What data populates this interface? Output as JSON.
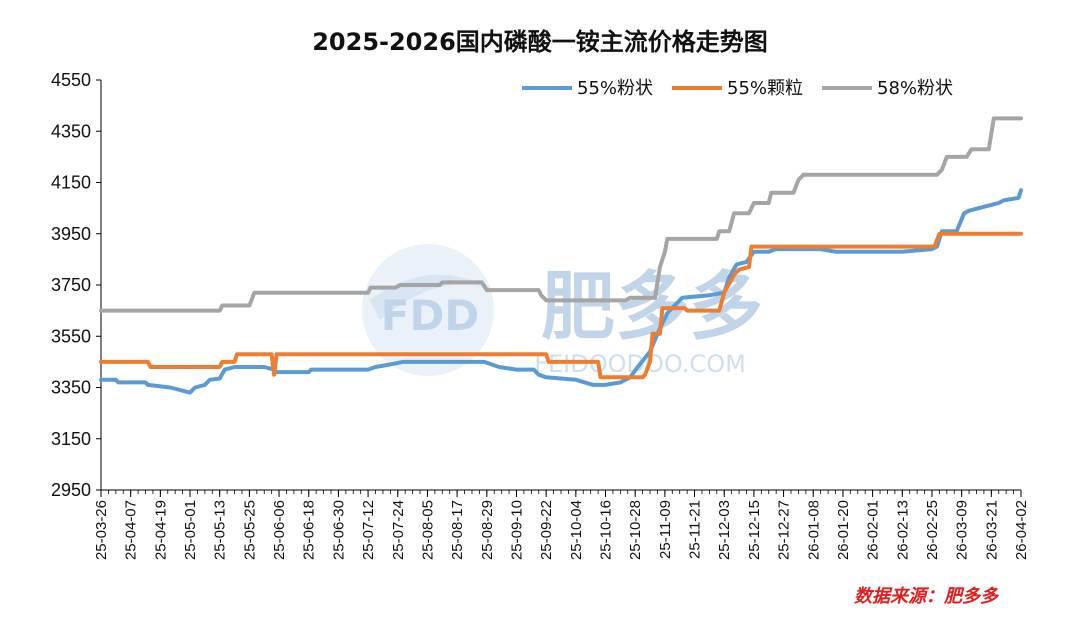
{
  "chart_data": {
    "type": "line",
    "title": "2025-2026国内磷酸一铵主流价格走势图",
    "xlabel": "",
    "ylabel": "",
    "ylim": [
      2950,
      4550
    ],
    "yticks": [
      2950,
      3150,
      3350,
      3550,
      3750,
      3950,
      4150,
      4350,
      4550
    ],
    "x_tick_labels": [
      "25-03-26",
      "25-04-07",
      "25-04-19",
      "25-05-01",
      "25-05-13",
      "25-05-25",
      "25-06-06",
      "25-06-18",
      "25-06-30",
      "25-07-12",
      "25-07-24",
      "25-08-05",
      "25-08-17",
      "25-08-29",
      "25-09-10",
      "25-09-22",
      "25-10-04",
      "25-10-16",
      "25-10-28",
      "25-11-09",
      "25-11-21",
      "25-12-03",
      "25-12-15",
      "25-12-27",
      "26-01-08",
      "26-01-20",
      "26-02-01",
      "26-02-13",
      "26-02-25",
      "26-03-09",
      "26-03-21",
      "26-04-02"
    ],
    "legend_position": "top-right",
    "grid": false,
    "series": [
      {
        "name": "55%粉状",
        "color": "#5B9BD5",
        "points": [
          [
            "25-03-26",
            3380
          ],
          [
            "25-04-01",
            3380
          ],
          [
            "25-04-02",
            3370
          ],
          [
            "25-04-13",
            3370
          ],
          [
            "25-04-14",
            3360
          ],
          [
            "25-04-23",
            3350
          ],
          [
            "25-05-01",
            3330
          ],
          [
            "25-05-03",
            3350
          ],
          [
            "25-05-07",
            3360
          ],
          [
            "25-05-09",
            3380
          ],
          [
            "25-05-13",
            3385
          ],
          [
            "25-05-15",
            3420
          ],
          [
            "25-05-19",
            3430
          ],
          [
            "25-05-31",
            3430
          ],
          [
            "25-06-04",
            3420
          ],
          [
            "25-06-05",
            3410
          ],
          [
            "25-06-18",
            3410
          ],
          [
            "25-06-19",
            3420
          ],
          [
            "25-07-12",
            3420
          ],
          [
            "25-07-15",
            3430
          ],
          [
            "25-07-21",
            3440
          ],
          [
            "25-07-26",
            3450
          ],
          [
            "25-08-28",
            3450
          ],
          [
            "25-09-03",
            3430
          ],
          [
            "25-09-10",
            3420
          ],
          [
            "25-09-17",
            3420
          ],
          [
            "25-09-19",
            3400
          ],
          [
            "25-09-22",
            3390
          ],
          [
            "25-10-04",
            3380
          ],
          [
            "25-10-11",
            3360
          ],
          [
            "25-10-16",
            3360
          ],
          [
            "25-10-22",
            3370
          ],
          [
            "25-10-26",
            3390
          ],
          [
            "25-10-29",
            3430
          ],
          [
            "25-11-03",
            3490
          ],
          [
            "25-11-06",
            3560
          ],
          [
            "25-11-08",
            3600
          ],
          [
            "25-11-10",
            3640
          ],
          [
            "25-11-14",
            3680
          ],
          [
            "25-11-16",
            3700
          ],
          [
            "25-11-27",
            3710
          ],
          [
            "25-12-03",
            3720
          ],
          [
            "25-12-05",
            3780
          ],
          [
            "25-12-08",
            3830
          ],
          [
            "25-12-12",
            3840
          ],
          [
            "25-12-15",
            3880
          ],
          [
            "25-12-21",
            3880
          ],
          [
            "25-12-24",
            3890
          ],
          [
            "26-01-11",
            3890
          ],
          [
            "26-01-17",
            3880
          ],
          [
            "26-02-13",
            3880
          ],
          [
            "26-02-25",
            3890
          ],
          [
            "26-02-27",
            3900
          ],
          [
            "26-03-01",
            3960
          ],
          [
            "26-03-07",
            3960
          ],
          [
            "26-03-10",
            4030
          ],
          [
            "26-03-12",
            4040
          ],
          [
            "26-03-16",
            4050
          ],
          [
            "26-03-20",
            4060
          ],
          [
            "26-03-24",
            4070
          ],
          [
            "26-03-26",
            4080
          ],
          [
            "26-04-01",
            4090
          ],
          [
            "26-04-02",
            4120
          ]
        ]
      },
      {
        "name": "55%颗粒",
        "color": "#ED7D31",
        "points": [
          [
            "25-03-26",
            3450
          ],
          [
            "25-04-14",
            3450
          ],
          [
            "25-04-15",
            3430
          ],
          [
            "25-05-13",
            3430
          ],
          [
            "25-05-14",
            3450
          ],
          [
            "25-05-19",
            3450
          ],
          [
            "25-05-20",
            3480
          ],
          [
            "25-06-03",
            3480
          ],
          [
            "25-06-04",
            3400
          ],
          [
            "25-06-05",
            3480
          ],
          [
            "25-09-22",
            3480
          ],
          [
            "25-09-23",
            3450
          ],
          [
            "25-10-13",
            3450
          ],
          [
            "25-10-14",
            3390
          ],
          [
            "25-10-31",
            3390
          ],
          [
            "25-11-01",
            3400
          ],
          [
            "25-11-03",
            3450
          ],
          [
            "25-11-04",
            3560
          ],
          [
            "25-11-07",
            3560
          ],
          [
            "25-11-08",
            3660
          ],
          [
            "25-11-17",
            3660
          ],
          [
            "25-11-18",
            3650
          ],
          [
            "25-12-01",
            3650
          ],
          [
            "25-12-03",
            3720
          ],
          [
            "25-12-07",
            3790
          ],
          [
            "25-12-09",
            3810
          ],
          [
            "25-12-13",
            3820
          ],
          [
            "25-12-14",
            3900
          ],
          [
            "26-02-26",
            3900
          ],
          [
            "26-02-28",
            3950
          ],
          [
            "26-04-02",
            3950
          ]
        ]
      },
      {
        "name": "58%粉状",
        "color": "#A5A5A5",
        "points": [
          [
            "25-03-26",
            3650
          ],
          [
            "25-05-13",
            3650
          ],
          [
            "25-05-14",
            3670
          ],
          [
            "25-05-25",
            3670
          ],
          [
            "25-05-27",
            3720
          ],
          [
            "25-07-12",
            3720
          ],
          [
            "25-07-13",
            3740
          ],
          [
            "25-07-23",
            3740
          ],
          [
            "25-07-25",
            3750
          ],
          [
            "25-08-10",
            3750
          ],
          [
            "25-08-11",
            3760
          ],
          [
            "25-08-27",
            3760
          ],
          [
            "25-08-29",
            3730
          ],
          [
            "25-09-19",
            3730
          ],
          [
            "25-09-20",
            3710
          ],
          [
            "25-09-22",
            3690
          ],
          [
            "25-10-24",
            3690
          ],
          [
            "25-10-26",
            3700
          ],
          [
            "25-11-05",
            3700
          ],
          [
            "25-11-07",
            3820
          ],
          [
            "25-11-09",
            3880
          ],
          [
            "25-11-10",
            3930
          ],
          [
            "25-11-30",
            3930
          ],
          [
            "25-12-01",
            3960
          ],
          [
            "25-12-05",
            3960
          ],
          [
            "25-12-07",
            4030
          ],
          [
            "25-12-13",
            4030
          ],
          [
            "25-12-15",
            4070
          ],
          [
            "25-12-21",
            4070
          ],
          [
            "25-12-22",
            4110
          ],
          [
            "25-12-31",
            4110
          ],
          [
            "26-01-02",
            4160
          ],
          [
            "26-01-04",
            4180
          ],
          [
            "26-02-27",
            4180
          ],
          [
            "26-03-01",
            4200
          ],
          [
            "26-03-03",
            4250
          ],
          [
            "26-03-11",
            4250
          ],
          [
            "26-03-13",
            4280
          ],
          [
            "26-03-20",
            4280
          ],
          [
            "26-03-22",
            4400
          ],
          [
            "26-04-02",
            4400
          ]
        ]
      }
    ]
  },
  "watermark": {
    "logo": "FDD",
    "brand": "肥多多",
    "site": "FEIDOODOO.COM"
  },
  "source_note": "数据来源：肥多多"
}
